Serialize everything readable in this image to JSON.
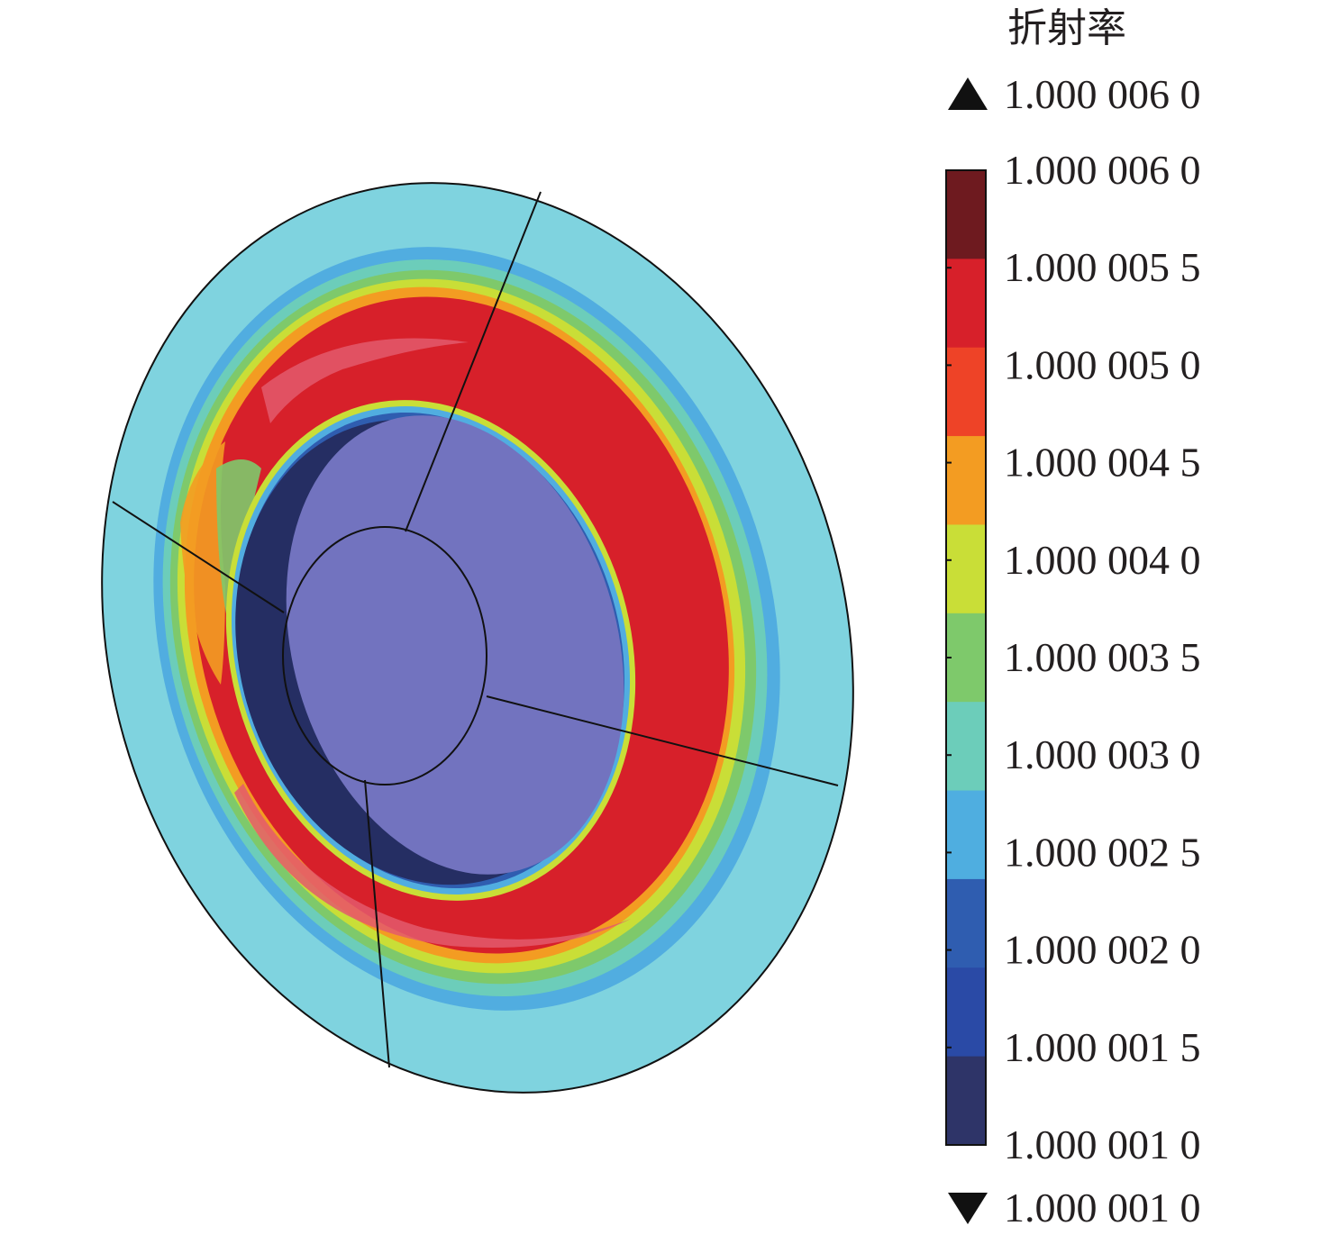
{
  "legend": {
    "title": "折射率",
    "over_value": "1.000 006 0",
    "under_value": "1.000 001 0",
    "tick_labels": [
      "1.000 006 0",
      "1.000 005 5",
      "1.000 005 0",
      "1.000 004 5",
      "1.000 004 0",
      "1.000 003 5",
      "1.000 003 0",
      "1.000 002 5",
      "1.000 002 0",
      "1.000 001 5",
      "1.000 001 0"
    ],
    "colors": [
      "#6e1a1f",
      "#d7202a",
      "#ee4327",
      "#f39c22",
      "#c9de37",
      "#7ec96b",
      "#6ccdba",
      "#4faee0",
      "#2f5db0",
      "#2a4aa6",
      "#2e3468"
    ],
    "over_marker_color": "#111111",
    "under_marker_color": "#111111"
  },
  "contour_plot": {
    "palette": {
      "outer_cyan": "#7fd3df",
      "light_blue": "#51ade0",
      "teal": "#6ccdba",
      "green": "#7ec96b",
      "yellow": "#c9de37",
      "orange": "#f39c22",
      "red": "#d7202a",
      "pink": "#e35a6c",
      "dark_navy": "#252e63",
      "core_purple": "#7273bf"
    }
  }
}
